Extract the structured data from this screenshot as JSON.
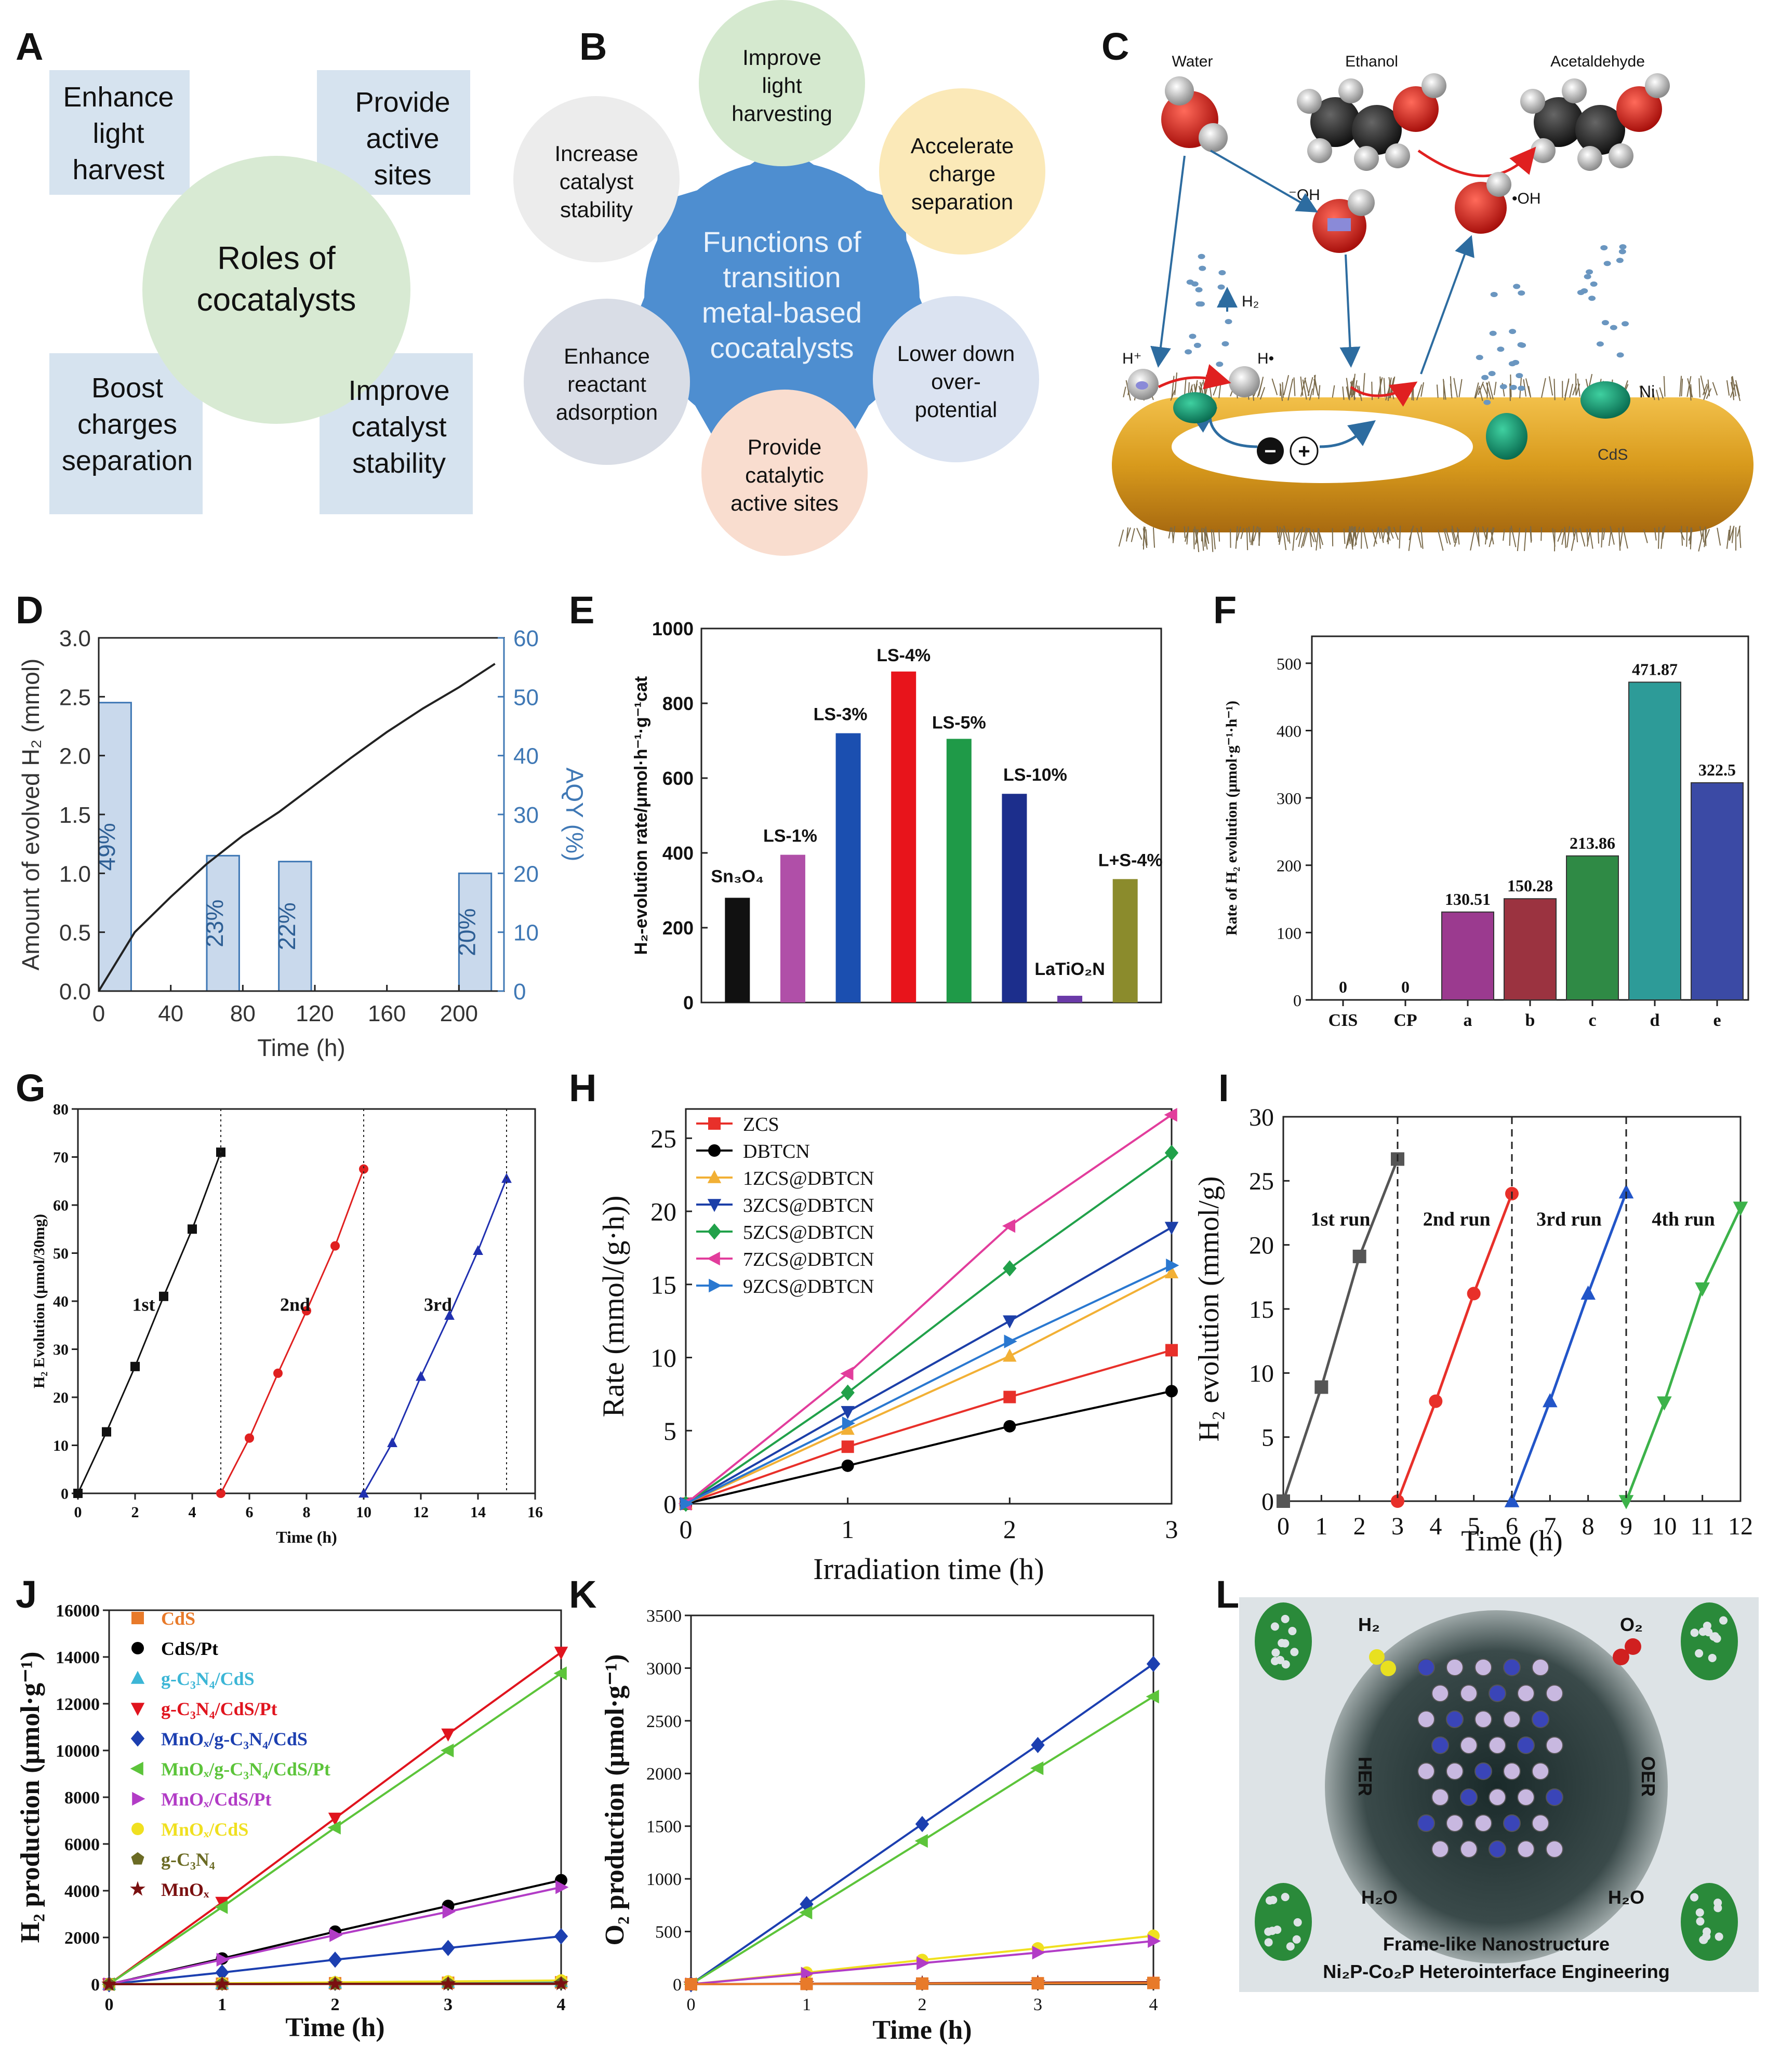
{
  "panels": {
    "A": {
      "letter": "A",
      "center": [
        "Roles of",
        "cocatalysts"
      ],
      "boxes": [
        {
          "lines": [
            "Enhance",
            "light",
            "harvest"
          ]
        },
        {
          "lines": [
            "Provide",
            "active",
            "sites"
          ]
        },
        {
          "lines": [
            "Boost",
            "charges",
            "separation"
          ]
        },
        {
          "lines": [
            "Improve",
            "catalyst",
            "stability"
          ]
        }
      ]
    },
    "B": {
      "letter": "B",
      "center": [
        "Functions of",
        "transition",
        "metal-based",
        "cocatalysts"
      ],
      "circles": [
        {
          "lines": [
            "Improve",
            "light",
            "harvesting"
          ],
          "color": "#d5e9cf"
        },
        {
          "lines": [
            "Accelerate",
            "charge",
            "separation"
          ],
          "color": "#fbe9b8"
        },
        {
          "lines": [
            "Lower down",
            "over-",
            "potential"
          ],
          "color": "#dbe3f1"
        },
        {
          "lines": [
            "Provide",
            "catalytic",
            "active sites"
          ],
          "color": "#f9ddcf"
        },
        {
          "lines": [
            "Enhance",
            "reactant",
            "adsorption"
          ],
          "color": "#d9dde6"
        },
        {
          "lines": [
            "Increase",
            "catalyst",
            "stability"
          ],
          "color": "#ececec"
        }
      ],
      "center_color": "#4e8ed0"
    },
    "C": {
      "letter": "C",
      "labels": {
        "water": "Water",
        "ethanol": "Ethanol",
        "acetaldehyde": "Acetaldehyde",
        "oh_minus": "⁻OH",
        "oh_radical": "•OH",
        "h2": "H₂",
        "h_plus": "H⁺",
        "h_radical": "H•",
        "ni": "Ni",
        "cds": "CdS",
        "electron": "−",
        "hole": "+"
      }
    },
    "D": {
      "letter": "D"
    },
    "E": {
      "letter": "E"
    },
    "F": {
      "letter": "F"
    },
    "G": {
      "letter": "G"
    },
    "H": {
      "letter": "H"
    },
    "I": {
      "letter": "I"
    },
    "J": {
      "letter": "J"
    },
    "K": {
      "letter": "K"
    },
    "L": {
      "letter": "L",
      "labels": {
        "h2": "H₂",
        "o2": "O₂",
        "her": "HER",
        "oer": "OER",
        "h2o_left": "H₂O",
        "h2o_right": "H₂O",
        "caption1": "Frame-like Nanostructure",
        "caption2": "Ni₂P-Co₂P Heterointerface Engineering"
      }
    }
  },
  "chart_data": [
    {
      "panel": "D",
      "type": "line",
      "xlabel": "Time (h)",
      "ylabel": "Amount of evolved H₂ (mmol)",
      "y2label": "AQY (%)",
      "xlim": [
        0,
        225
      ],
      "ylim": [
        0,
        3.0
      ],
      "y2lim": [
        0,
        60
      ],
      "xticks": [
        "0",
        "40",
        "80",
        "120",
        "160",
        "200"
      ],
      "yticks": [
        "0.0",
        "0.5",
        "1.0",
        "1.5",
        "2.0",
        "2.5",
        "3.0"
      ],
      "y2ticks": [
        "0",
        "10",
        "20",
        "30",
        "40",
        "50",
        "60"
      ],
      "series": [
        {
          "name": "H₂",
          "x": [
            0,
            20,
            40,
            60,
            80,
            100,
            120,
            140,
            160,
            180,
            200,
            220
          ],
          "y": [
            0,
            0.5,
            0.8,
            1.08,
            1.32,
            1.52,
            1.75,
            1.98,
            2.2,
            2.4,
            2.58,
            2.78
          ]
        }
      ],
      "aqy_bars": [
        {
          "x0": 0,
          "x1": 18,
          "value": 49,
          "label": "49%"
        },
        {
          "x0": 60,
          "x1": 78,
          "value": 23,
          "label": "23%"
        },
        {
          "x0": 100,
          "x1": 118,
          "value": 22,
          "label": "22%"
        },
        {
          "x0": 200,
          "x1": 218,
          "value": 20,
          "label": "20%"
        }
      ]
    },
    {
      "panel": "E",
      "type": "bar",
      "ylabel": "H₂-evolution rate/μmol·h⁻¹·g⁻¹cat",
      "ylim": [
        0,
        1000
      ],
      "yticks": [
        "0",
        "200",
        "400",
        "600",
        "800",
        "1000"
      ],
      "categories": [
        "Sn₃O₄",
        "LS-1%",
        "LS-3%",
        "LS-4%",
        "LS-5%",
        "LS-10%",
        "LaTiO₂N",
        "L+S-4%"
      ],
      "values": [
        280,
        395,
        720,
        885,
        705,
        558,
        18,
        330
      ],
      "colors": [
        "#111111",
        "#b04fa8",
        "#1b4fb0",
        "#e8141b",
        "#1f9a48",
        "#1c2e8c",
        "#6a3aa8",
        "#8b8b2c"
      ]
    },
    {
      "panel": "F",
      "type": "bar",
      "ylabel": "Rate of H₂ evolution (μmol·g⁻¹·h⁻¹)",
      "ylim": [
        0,
        500
      ],
      "yticks": [
        "0",
        "100",
        "200",
        "300",
        "400",
        "500"
      ],
      "categories": [
        "CIS",
        "CP",
        "a",
        "b",
        "c",
        "d",
        "e"
      ],
      "values": [
        0,
        0,
        130.51,
        150.28,
        213.86,
        471.87,
        322.5
      ],
      "labels": [
        "0",
        "0",
        "130.51",
        "150.28",
        "213.86",
        "471.87",
        "322.5"
      ],
      "colors": [
        "#888888",
        "#888888",
        "#9b3a8f",
        "#9b3340",
        "#2f8a45",
        "#2d9b98",
        "#3b4aa5"
      ]
    },
    {
      "panel": "G",
      "type": "line",
      "xlabel": "Time (h)",
      "ylabel": "H₂ Evolution (μmol/30mg)",
      "xlim": [
        0,
        16
      ],
      "ylim": [
        0,
        80
      ],
      "xticks": [
        "0",
        "2",
        "4",
        "6",
        "8",
        "10",
        "12",
        "14",
        "16"
      ],
      "yticks": [
        "0",
        "10",
        "20",
        "30",
        "40",
        "50",
        "60",
        "70",
        "80"
      ],
      "run_labels": [
        "1st",
        "2nd",
        "3rd"
      ],
      "dividers": [
        0,
        5,
        10,
        15
      ],
      "series": [
        {
          "name": "1st",
          "color": "#111111",
          "marker": "square",
          "x": [
            0,
            1,
            2,
            3,
            4,
            5
          ],
          "y": [
            0,
            12.8,
            26.4,
            41,
            55,
            71
          ]
        },
        {
          "name": "2nd",
          "color": "#e02020",
          "marker": "circle",
          "x": [
            5,
            6,
            7,
            8,
            9,
            10
          ],
          "y": [
            0,
            11.5,
            25,
            38,
            51.5,
            67.5
          ]
        },
        {
          "name": "3rd",
          "color": "#2030b0",
          "marker": "triangle",
          "x": [
            10,
            11,
            12,
            13,
            14,
            15
          ],
          "y": [
            0,
            10.5,
            24.3,
            37,
            50.5,
            65.5
          ]
        }
      ]
    },
    {
      "panel": "H",
      "type": "line",
      "xlabel": "Irradiation time (h)",
      "ylabel": "Rate (mmol/(g·h))",
      "xlim": [
        0,
        3
      ],
      "ylim": [
        0,
        27
      ],
      "xticks": [
        "0",
        "1",
        "2",
        "3"
      ],
      "yticks": [
        "0",
        "5",
        "10",
        "15",
        "20",
        "25"
      ],
      "series": [
        {
          "name": "ZCS",
          "color": "#e8302a",
          "marker": "square",
          "x": [
            0,
            1,
            2,
            3
          ],
          "y": [
            0,
            3.9,
            7.3,
            10.5
          ]
        },
        {
          "name": "DBTCN",
          "color": "#000000",
          "marker": "circle",
          "x": [
            0,
            1,
            2,
            3
          ],
          "y": [
            0,
            2.6,
            5.3,
            7.7
          ]
        },
        {
          "name": "1ZCS@DBTCN",
          "color": "#f2b035",
          "marker": "triangle",
          "x": [
            0,
            1,
            2,
            3
          ],
          "y": [
            0,
            5.1,
            10.1,
            15.8
          ]
        },
        {
          "name": "3ZCS@DBTCN",
          "color": "#1c3fa8",
          "marker": "triangle-down",
          "x": [
            0,
            1,
            2,
            3
          ],
          "y": [
            0,
            6.3,
            12.5,
            18.9
          ]
        },
        {
          "name": "5ZCS@DBTCN",
          "color": "#21a14a",
          "marker": "diamond",
          "x": [
            0,
            1,
            2,
            3
          ],
          "y": [
            0,
            7.6,
            16.1,
            24
          ]
        },
        {
          "name": "7ZCS@DBTCN",
          "color": "#e23d9c",
          "marker": "triangle-left",
          "x": [
            0,
            1,
            2,
            3
          ],
          "y": [
            0,
            8.9,
            19,
            26.6
          ]
        },
        {
          "name": "9ZCS@DBTCN",
          "color": "#2a78d0",
          "marker": "triangle-right",
          "x": [
            0,
            1,
            2,
            3
          ],
          "y": [
            0,
            5.5,
            11.1,
            16.3
          ]
        }
      ]
    },
    {
      "panel": "I",
      "type": "line",
      "xlabel": "Time (h)",
      "ylabel": "H₂ evolution (mmol/g)",
      "xlim": [
        0,
        12
      ],
      "ylim": [
        0,
        30
      ],
      "xticks": [
        "0",
        "1",
        "2",
        "3",
        "4",
        "5",
        "6",
        "7",
        "8",
        "9",
        "10",
        "11",
        "12"
      ],
      "yticks": [
        "0",
        "5",
        "10",
        "15",
        "20",
        "25",
        "30"
      ],
      "run_labels": [
        "1st run",
        "2nd run",
        "3rd run",
        "4th run"
      ],
      "dividers": [
        3,
        6,
        9
      ],
      "series": [
        {
          "name": "1st run",
          "color": "#555555",
          "marker": "square",
          "x": [
            0,
            1,
            2,
            3
          ],
          "y": [
            0,
            8.9,
            19.1,
            26.7
          ]
        },
        {
          "name": "2nd run",
          "color": "#e8302a",
          "marker": "circle",
          "x": [
            3,
            4,
            5,
            6
          ],
          "y": [
            0,
            7.8,
            16.2,
            24
          ]
        },
        {
          "name": "3rd run",
          "color": "#2255c8",
          "marker": "triangle",
          "x": [
            6,
            7,
            8,
            9
          ],
          "y": [
            0,
            7.8,
            16.2,
            24.1
          ]
        },
        {
          "name": "4th run",
          "color": "#3cb24a",
          "marker": "triangle-down",
          "x": [
            9,
            10,
            11,
            12
          ],
          "y": [
            0,
            7.7,
            16.6,
            22.9
          ]
        }
      ]
    },
    {
      "panel": "J",
      "type": "line",
      "xlabel": "Time (h)",
      "ylabel": "H₂ production (μmol·g⁻¹)",
      "xlim": [
        0,
        4
      ],
      "ylim": [
        0,
        16000
      ],
      "xticks": [
        "0",
        "1",
        "2",
        "3",
        "4"
      ],
      "yticks": [
        "0",
        "2000",
        "4000",
        "6000",
        "8000",
        "10000",
        "12000",
        "14000",
        "16000"
      ],
      "series": [
        {
          "name": "CdS",
          "color": "#e87a2a",
          "marker": "square",
          "x": [
            0,
            1,
            2,
            3,
            4
          ],
          "y": [
            0,
            20,
            40,
            60,
            80
          ]
        },
        {
          "name": "CdS/Pt",
          "color": "#000000",
          "marker": "circle",
          "x": [
            0,
            1,
            2,
            3,
            4
          ],
          "y": [
            0,
            1100,
            2250,
            3350,
            4450
          ]
        },
        {
          "name": "g-C₃N₄/CdS",
          "color": "#3cb6d6",
          "marker": "triangle",
          "x": [
            0,
            1,
            2,
            3,
            4
          ],
          "y": [
            0,
            30,
            60,
            90,
            120
          ]
        },
        {
          "name": "g-C₃N₄/CdS/Pt",
          "color": "#e0141e",
          "marker": "triangle-down",
          "x": [
            0,
            1,
            2,
            3,
            4
          ],
          "y": [
            0,
            3500,
            7100,
            10700,
            14200
          ]
        },
        {
          "name": "MnOₓ/g-C₃N₄/CdS",
          "color": "#1c3fb0",
          "marker": "diamond",
          "x": [
            0,
            1,
            2,
            3,
            4
          ],
          "y": [
            0,
            500,
            1050,
            1550,
            2050
          ]
        },
        {
          "name": "MnOₓ/g-C₃N₄/CdS/Pt",
          "color": "#5cc43a",
          "marker": "triangle-left",
          "x": [
            0,
            1,
            2,
            3,
            4
          ],
          "y": [
            0,
            3300,
            6700,
            10000,
            13300
          ]
        },
        {
          "name": "MnOₓ/CdS/Pt",
          "color": "#b23cc6",
          "marker": "triangle-right",
          "x": [
            0,
            1,
            2,
            3,
            4
          ],
          "y": [
            0,
            1050,
            2100,
            3100,
            4150
          ]
        },
        {
          "name": "MnOₓ/CdS",
          "color": "#f0e020",
          "marker": "circle",
          "x": [
            0,
            1,
            2,
            3,
            4
          ],
          "y": [
            0,
            40,
            80,
            120,
            160
          ]
        },
        {
          "name": "g-C₃N₄",
          "color": "#6b6b24",
          "marker": "pentagon",
          "x": [
            0,
            1,
            2,
            3,
            4
          ],
          "y": [
            0,
            10,
            20,
            30,
            40
          ]
        },
        {
          "name": "MnOₓ",
          "color": "#7a1010",
          "marker": "star",
          "x": [
            0,
            1,
            2,
            3,
            4
          ],
          "y": [
            0,
            5,
            10,
            15,
            20
          ]
        }
      ]
    },
    {
      "panel": "K",
      "type": "line",
      "xlabel": "Time (h)",
      "ylabel": "O₂ production (μmol·g⁻¹)",
      "xlim": [
        0,
        4
      ],
      "ylim": [
        0,
        3500
      ],
      "xticks": [
        "0",
        "1",
        "2",
        "3",
        "4"
      ],
      "yticks": [
        "0",
        "500",
        "1000",
        "1500",
        "2000",
        "2500",
        "3000",
        "3500"
      ],
      "series": [
        {
          "name": "MnOₓ/g-C₃N₄/CdS",
          "color": "#1c3fb0",
          "marker": "diamond",
          "x": [
            0,
            1,
            2,
            3,
            4
          ],
          "y": [
            0,
            760,
            1520,
            2270,
            3040
          ]
        },
        {
          "name": "MnOₓ/g-C₃N₄/CdS/Pt",
          "color": "#5cc43a",
          "marker": "triangle-left",
          "x": [
            0,
            1,
            2,
            3,
            4
          ],
          "y": [
            0,
            680,
            1360,
            2050,
            2730
          ]
        },
        {
          "name": "MnOₓ/CdS",
          "color": "#f0e020",
          "marker": "circle",
          "x": [
            0,
            1,
            2,
            3,
            4
          ],
          "y": [
            0,
            110,
            230,
            340,
            460
          ]
        },
        {
          "name": "MnOₓ/CdS/Pt",
          "color": "#b23cc6",
          "marker": "triangle-right",
          "x": [
            0,
            1,
            2,
            3,
            4
          ],
          "y": [
            0,
            100,
            200,
            300,
            410
          ]
        },
        {
          "name": "MnOₓ",
          "color": "#7a1010",
          "marker": "star",
          "x": [
            0,
            1,
            2,
            3,
            4
          ],
          "y": [
            0,
            5,
            10,
            15,
            20
          ]
        },
        {
          "name": "CdS",
          "color": "#e87a2a",
          "marker": "square",
          "x": [
            0,
            1,
            2,
            3,
            4
          ],
          "y": [
            0,
            3,
            6,
            9,
            12
          ]
        }
      ]
    }
  ]
}
